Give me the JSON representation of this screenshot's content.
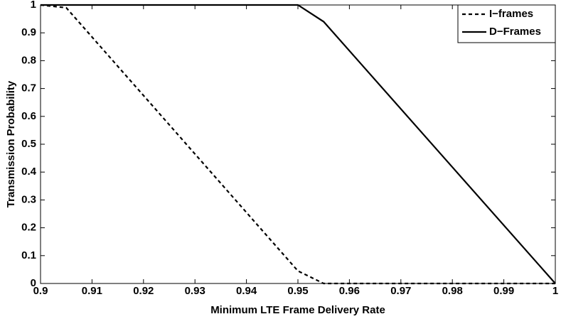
{
  "chart_data": {
    "type": "line",
    "x_label": "Minimum LTE Frame Delivery Rate",
    "y_label": "Transmission Probability",
    "x": [
      0.9,
      0.905,
      0.95,
      0.955,
      1
    ],
    "series": [
      {
        "name": "I−frames",
        "color": "#000000",
        "linestyle": "dashed",
        "values": [
          1,
          0.99,
          0.045,
          0,
          0
        ]
      },
      {
        "name": "D−Frames",
        "color": "#000000",
        "linestyle": "solid",
        "values": [
          1,
          1,
          1,
          0.94,
          0
        ]
      }
    ],
    "xlim": [
      0.9,
      1
    ],
    "xticks": [
      0.9,
      0.91,
      0.92,
      0.93,
      0.94,
      0.95,
      0.96,
      0.97,
      0.98,
      0.99,
      1
    ],
    "ylim": [
      0,
      1
    ],
    "yticks": [
      0,
      0.1,
      0.2,
      0.3,
      0.4,
      0.5,
      0.6,
      0.7,
      0.8,
      0.9,
      1
    ],
    "grid": false,
    "legend": "upper right"
  }
}
